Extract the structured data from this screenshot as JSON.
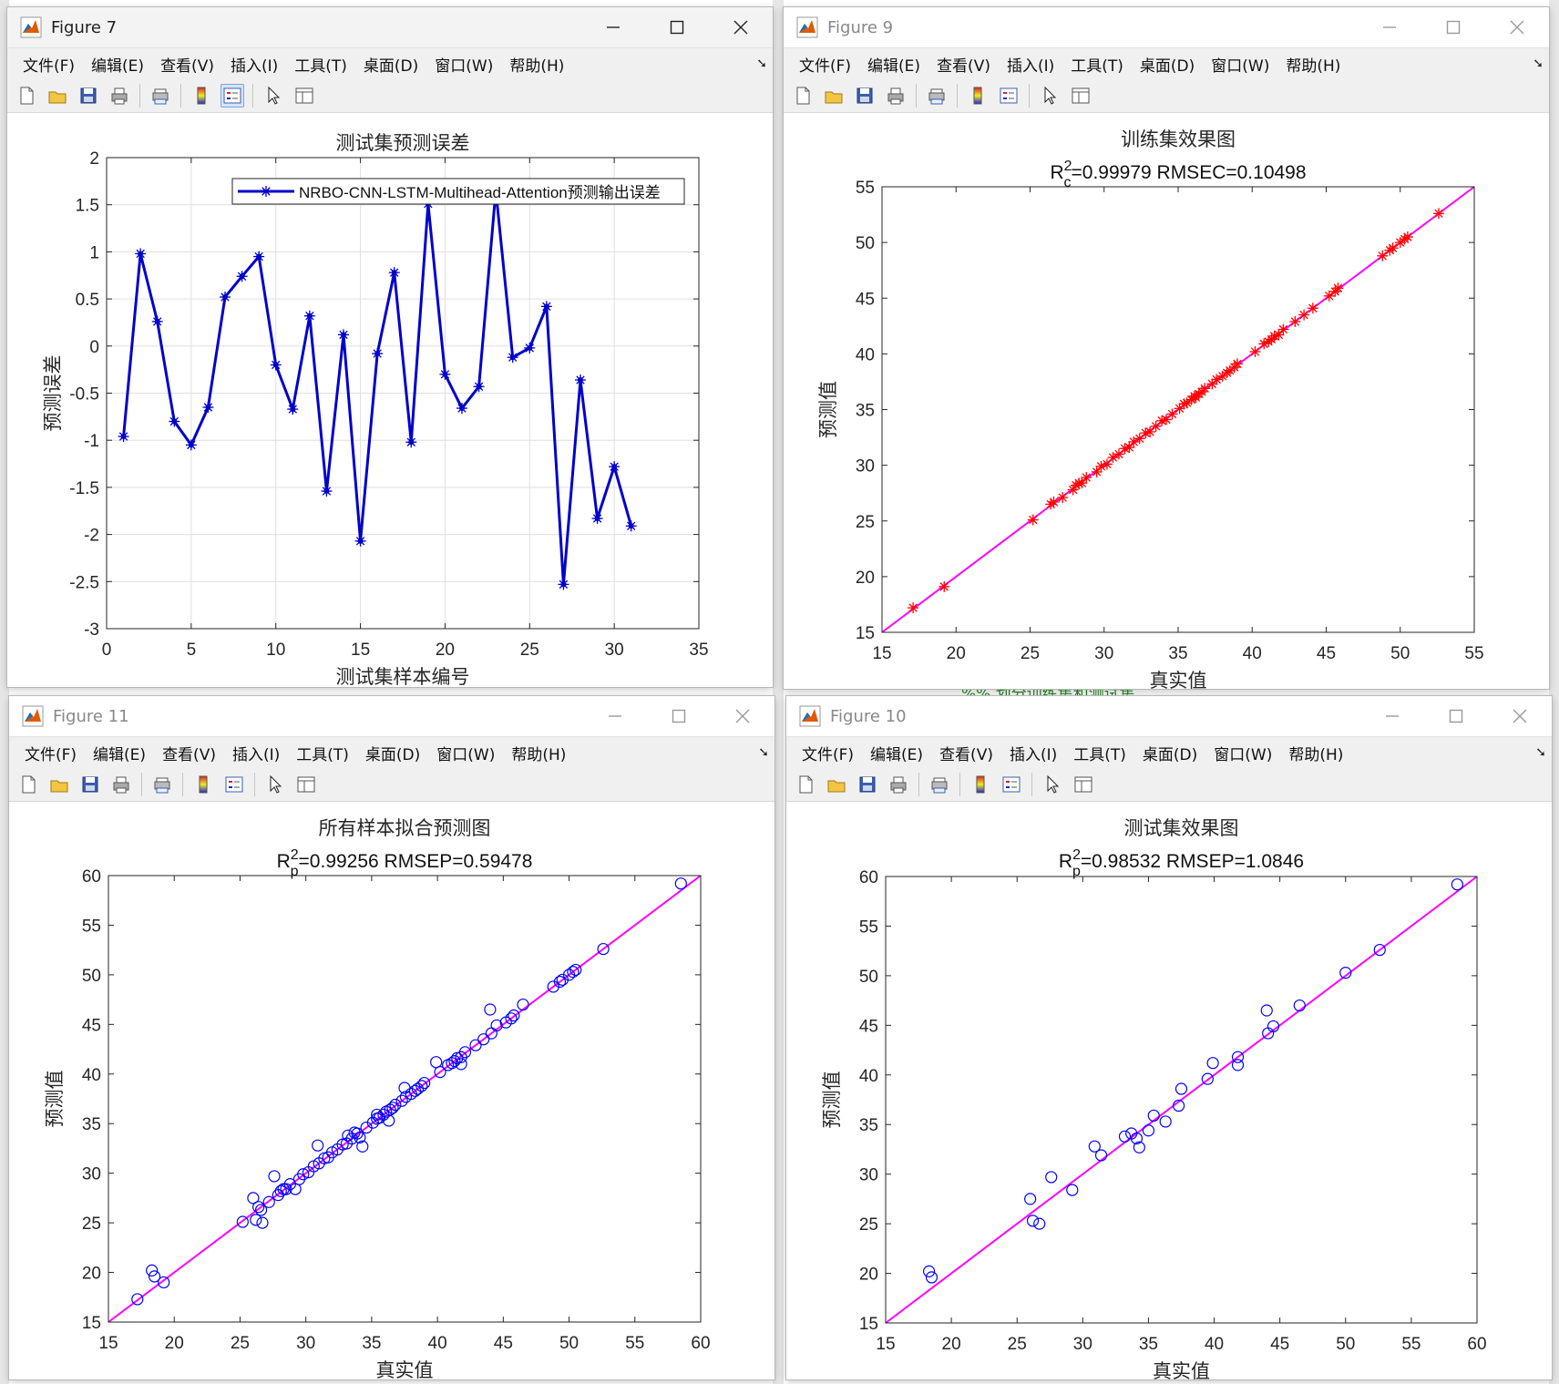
{
  "windows": [
    {
      "id": "fig7",
      "title": "Figure 7",
      "active": true,
      "menu": [
        "文件(F)",
        "编辑(E)",
        "查看(V)",
        "插入(I)",
        "工具(T)",
        "桌面(D)",
        "窗口(W)",
        "帮助(H)"
      ]
    },
    {
      "id": "fig9",
      "title": "Figure 9",
      "active": false,
      "menu": [
        "文件(F)",
        "编辑(E)",
        "查看(V)",
        "插入(I)",
        "工具(T)",
        "桌面(D)",
        "窗口(W)",
        "帮助(H)"
      ]
    },
    {
      "id": "fig11",
      "title": "Figure 11",
      "active": false,
      "menu": [
        "文件(F)",
        "编辑(E)",
        "查看(V)",
        "插入(I)",
        "工具(T)",
        "桌面(D)",
        "窗口(W)",
        "帮助(H)"
      ]
    },
    {
      "id": "fig10",
      "title": "Figure 10",
      "active": false,
      "menu": [
        "文件(F)",
        "编辑(E)",
        "查看(V)",
        "插入(I)",
        "工具(T)",
        "桌面(D)",
        "窗口(W)",
        "帮助(H)"
      ]
    }
  ],
  "toolbar_icons": [
    "new-figure-icon",
    "open-file-icon",
    "save-icon",
    "print-icon",
    "print-preview-icon",
    "colorbar-icon",
    "legend-icon",
    "pointer-icon",
    "property-inspector-icon"
  ],
  "background": {
    "snippet": "%%   划分训练集和测试集",
    "snippet_color": "#228b22"
  },
  "colors": {
    "line_blue": "#0000cc",
    "diag_magenta": "#ff00ff",
    "marker_red": "#ff0000",
    "circle_blue": "#0000ff"
  },
  "chart_data": [
    {
      "id": "fig7",
      "type": "line",
      "title": "测试集预测误差",
      "xlabel": "测试集样本编号",
      "ylabel": "预测误差",
      "xlim": [
        0,
        35
      ],
      "ylim": [
        -3,
        2
      ],
      "xticks": [
        0,
        5,
        10,
        15,
        20,
        25,
        30,
        35
      ],
      "yticks": [
        -3,
        -2.5,
        -2,
        -1.5,
        -1,
        -0.5,
        0,
        0.5,
        1,
        1.5,
        2
      ],
      "grid": true,
      "legend": {
        "position": "top-right",
        "entries": [
          "NRBO-CNN-LSTM-Multihead-Attention预测输出误差"
        ]
      },
      "series": [
        {
          "name": "NRBO-CNN-LSTM-Multihead-Attention预测输出误差",
          "x": [
            1,
            2,
            3,
            4,
            5,
            6,
            7,
            8,
            9,
            10,
            11,
            12,
            13,
            14,
            15,
            16,
            17,
            18,
            19,
            20,
            21,
            22,
            23,
            24,
            25,
            26,
            27,
            28,
            29,
            30,
            31
          ],
          "values": [
            -0.96,
            0.98,
            0.26,
            -0.8,
            -1.05,
            -0.65,
            0.52,
            0.74,
            0.95,
            -0.2,
            -0.67,
            0.32,
            -1.54,
            0.12,
            -2.07,
            -0.08,
            0.78,
            -1.02,
            1.51,
            -0.3,
            -0.66,
            -0.43,
            1.65,
            -0.12,
            -0.02,
            0.42,
            -2.53,
            -0.36,
            -1.83,
            -1.28,
            -1.91
          ]
        }
      ]
    },
    {
      "id": "fig9",
      "type": "scatter",
      "title": "训练集效果图",
      "subtitle": {
        "base": "R",
        "sup": "2",
        "sub": "c",
        "rest": "=0.99979  RMSEC=0.10498"
      },
      "xlabel": "真实值",
      "ylabel": "预测值",
      "xlim": [
        15,
        55
      ],
      "ylim": [
        15,
        55
      ],
      "xticks": [
        15,
        20,
        25,
        30,
        35,
        40,
        45,
        50,
        55
      ],
      "yticks": [
        15,
        20,
        25,
        30,
        35,
        40,
        45,
        50,
        55
      ],
      "grid": false,
      "marker": "asterisk",
      "points": [
        [
          17.1,
          17.2
        ],
        [
          19.2,
          19.1
        ],
        [
          25.2,
          25.1
        ],
        [
          26.4,
          26.5
        ],
        [
          26.6,
          26.7
        ],
        [
          27.2,
          27.1
        ],
        [
          27.9,
          27.8
        ],
        [
          28.1,
          28.2
        ],
        [
          28.3,
          28.4
        ],
        [
          28.5,
          28.4
        ],
        [
          28.8,
          28.9
        ],
        [
          29.5,
          29.4
        ],
        [
          29.8,
          29.9
        ],
        [
          30.2,
          30.1
        ],
        [
          30.6,
          30.7
        ],
        [
          31.0,
          31.0
        ],
        [
          31.4,
          31.5
        ],
        [
          31.7,
          31.6
        ],
        [
          32.0,
          32.1
        ],
        [
          32.4,
          32.4
        ],
        [
          32.8,
          32.9
        ],
        [
          33.1,
          33.0
        ],
        [
          33.5,
          33.5
        ],
        [
          33.9,
          34.0
        ],
        [
          34.2,
          34.1
        ],
        [
          34.6,
          34.6
        ],
        [
          35.1,
          35.1
        ],
        [
          35.4,
          35.5
        ],
        [
          35.6,
          35.6
        ],
        [
          35.9,
          35.9
        ],
        [
          36.1,
          36.2
        ],
        [
          36.2,
          36.1
        ],
        [
          36.4,
          36.4
        ],
        [
          36.6,
          36.6
        ],
        [
          36.8,
          36.9
        ],
        [
          37.3,
          37.3
        ],
        [
          37.6,
          37.7
        ],
        [
          38.0,
          38.0
        ],
        [
          38.3,
          38.3
        ],
        [
          38.5,
          38.5
        ],
        [
          38.8,
          38.8
        ],
        [
          39.0,
          39.1
        ],
        [
          40.2,
          40.2
        ],
        [
          40.8,
          40.9
        ],
        [
          41.1,
          41.1
        ],
        [
          41.3,
          41.3
        ],
        [
          41.5,
          41.6
        ],
        [
          41.8,
          41.7
        ],
        [
          42.1,
          42.2
        ],
        [
          42.9,
          42.9
        ],
        [
          43.5,
          43.5
        ],
        [
          44.1,
          44.1
        ],
        [
          45.2,
          45.2
        ],
        [
          45.6,
          45.6
        ],
        [
          45.8,
          45.9
        ],
        [
          48.8,
          48.8
        ],
        [
          49.3,
          49.3
        ],
        [
          49.5,
          49.5
        ],
        [
          50.0,
          50.0
        ],
        [
          50.3,
          50.3
        ],
        [
          50.5,
          50.5
        ],
        [
          52.6,
          52.6
        ]
      ]
    },
    {
      "id": "fig11",
      "type": "scatter",
      "title": "所有样本拟合预测图",
      "subtitle": {
        "base": "R",
        "sup": "2",
        "sub": "p",
        "rest": "=0.99256  RMSEP=0.59478"
      },
      "xlabel": "真实值",
      "ylabel": "预测值",
      "xlim": [
        15,
        60
      ],
      "ylim": [
        15,
        60
      ],
      "xticks": [
        15,
        20,
        25,
        30,
        35,
        40,
        45,
        50,
        55,
        60
      ],
      "yticks": [
        15,
        20,
        25,
        30,
        35,
        40,
        45,
        50,
        55,
        60
      ],
      "grid": false,
      "marker": "circle",
      "points": [
        [
          17.2,
          17.3
        ],
        [
          18.3,
          20.2
        ],
        [
          18.5,
          19.6
        ],
        [
          19.2,
          19.0
        ],
        [
          25.2,
          25.1
        ],
        [
          26.0,
          27.5
        ],
        [
          26.2,
          25.3
        ],
        [
          26.4,
          26.6
        ],
        [
          26.6,
          26.3
        ],
        [
          26.7,
          25.0
        ],
        [
          27.2,
          27.1
        ],
        [
          27.6,
          29.7
        ],
        [
          27.9,
          27.8
        ],
        [
          28.1,
          28.2
        ],
        [
          28.3,
          28.4
        ],
        [
          28.5,
          28.4
        ],
        [
          28.8,
          28.9
        ],
        [
          29.2,
          28.4
        ],
        [
          29.5,
          29.4
        ],
        [
          29.8,
          29.9
        ],
        [
          30.2,
          30.1
        ],
        [
          30.6,
          30.7
        ],
        [
          30.9,
          32.8
        ],
        [
          31.0,
          31.0
        ],
        [
          31.4,
          31.5
        ],
        [
          31.7,
          31.6
        ],
        [
          32.0,
          32.1
        ],
        [
          32.4,
          32.4
        ],
        [
          32.8,
          32.9
        ],
        [
          33.1,
          33.0
        ],
        [
          33.2,
          33.8
        ],
        [
          33.5,
          33.5
        ],
        [
          33.7,
          34.1
        ],
        [
          33.9,
          34.0
        ],
        [
          34.1,
          33.6
        ],
        [
          34.3,
          32.7
        ],
        [
          34.6,
          34.6
        ],
        [
          35.1,
          35.1
        ],
        [
          35.4,
          35.5
        ],
        [
          35.4,
          35.9
        ],
        [
          35.6,
          35.6
        ],
        [
          35.9,
          35.9
        ],
        [
          36.1,
          36.2
        ],
        [
          36.3,
          35.3
        ],
        [
          36.4,
          36.4
        ],
        [
          36.6,
          36.6
        ],
        [
          36.8,
          36.9
        ],
        [
          37.3,
          37.3
        ],
        [
          37.6,
          37.7
        ],
        [
          37.5,
          38.6
        ],
        [
          38.0,
          38.0
        ],
        [
          38.3,
          38.3
        ],
        [
          38.5,
          38.5
        ],
        [
          38.8,
          38.8
        ],
        [
          39.0,
          39.1
        ],
        [
          39.9,
          41.2
        ],
        [
          40.2,
          40.2
        ],
        [
          40.8,
          40.9
        ],
        [
          41.1,
          41.1
        ],
        [
          41.3,
          41.3
        ],
        [
          41.5,
          41.6
        ],
        [
          41.8,
          41.7
        ],
        [
          41.8,
          41.0
        ],
        [
          42.1,
          42.2
        ],
        [
          42.9,
          42.9
        ],
        [
          43.5,
          43.5
        ],
        [
          44.0,
          46.5
        ],
        [
          44.1,
          44.1
        ],
        [
          44.5,
          44.9
        ],
        [
          45.2,
          45.2
        ],
        [
          45.6,
          45.6
        ],
        [
          45.8,
          45.9
        ],
        [
          46.5,
          47.0
        ],
        [
          48.8,
          48.8
        ],
        [
          49.3,
          49.3
        ],
        [
          49.5,
          49.5
        ],
        [
          50.0,
          50.0
        ],
        [
          50.3,
          50.3
        ],
        [
          50.5,
          50.5
        ],
        [
          52.6,
          52.6
        ],
        [
          58.5,
          59.2
        ]
      ]
    },
    {
      "id": "fig10",
      "type": "scatter",
      "title": "测试集效果图",
      "subtitle": {
        "base": "R",
        "sup": "2",
        "sub": "p",
        "rest": "=0.98532  RMSEP=1.0846"
      },
      "xlabel": "真实值",
      "ylabel": "预测值",
      "xlim": [
        15,
        60
      ],
      "ylim": [
        15,
        60
      ],
      "xticks": [
        15,
        20,
        25,
        30,
        35,
        40,
        45,
        50,
        55,
        60
      ],
      "yticks": [
        15,
        20,
        25,
        30,
        35,
        40,
        45,
        50,
        55,
        60
      ],
      "grid": false,
      "marker": "circle",
      "points": [
        [
          18.3,
          20.2
        ],
        [
          18.5,
          19.6
        ],
        [
          26.0,
          27.5
        ],
        [
          26.2,
          25.3
        ],
        [
          26.7,
          25.0
        ],
        [
          27.6,
          29.7
        ],
        [
          29.2,
          28.4
        ],
        [
          30.9,
          32.8
        ],
        [
          31.4,
          31.9
        ],
        [
          33.2,
          33.8
        ],
        [
          33.7,
          34.1
        ],
        [
          34.1,
          33.6
        ],
        [
          34.3,
          32.7
        ],
        [
          35.0,
          34.4
        ],
        [
          35.4,
          35.9
        ],
        [
          36.3,
          35.3
        ],
        [
          37.3,
          36.9
        ],
        [
          37.5,
          38.6
        ],
        [
          39.5,
          39.6
        ],
        [
          39.9,
          41.2
        ],
        [
          41.8,
          41.0
        ],
        [
          41.8,
          41.8
        ],
        [
          44.0,
          46.5
        ],
        [
          44.1,
          44.2
        ],
        [
          44.5,
          44.9
        ],
        [
          46.5,
          47.0
        ],
        [
          50.0,
          50.3
        ],
        [
          52.6,
          52.6
        ],
        [
          58.5,
          59.2
        ]
      ]
    }
  ]
}
